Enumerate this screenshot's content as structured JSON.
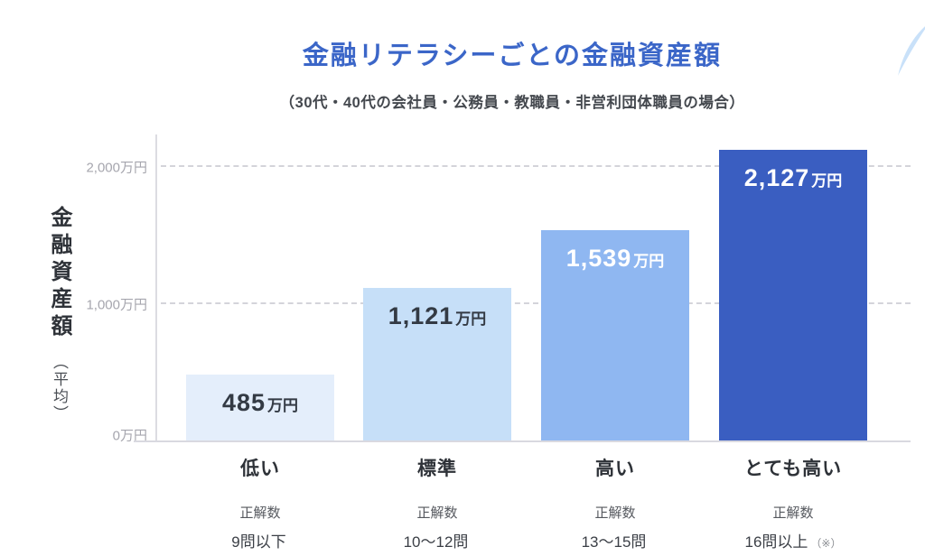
{
  "title": "金融リテラシーごとの金融資産額",
  "subtitle": "（30代・40代の会社員・公務員・教職員・非営利団体職員の場合）",
  "decor": {
    "swoosh_color": "#c9e1f9"
  },
  "y_axis": {
    "label_main": "金融資産額",
    "label_sub": "（平均）",
    "tick_2000": "2,000万円",
    "tick_1000": "1,000万円",
    "tick_0": "0万円"
  },
  "chart_data": {
    "type": "bar",
    "title": "金融リテラシーごとの金融資産額",
    "subtitle": "（30代・40代の会社員・公務員・教職員・非営利団体職員の場合）",
    "ylabel": "金融資産額（平均）",
    "unit": "万円",
    "ylim": [
      0,
      2200
    ],
    "yticks": [
      0,
      1000,
      2000
    ],
    "grid": "dashed horizontal at 1000 and 2000",
    "legend": "none",
    "categories": [
      "低い",
      "標準",
      "高い",
      "とても高い"
    ],
    "values": [
      485,
      1121,
      1539,
      2127
    ],
    "bars": [
      {
        "category": "低い",
        "answers_caption": "正解数",
        "range": "9問以下",
        "note": "",
        "value": 485,
        "value_label": "485",
        "unit": "万円",
        "color": "#e4eefb",
        "label_color": "#333a44"
      },
      {
        "category": "標準",
        "answers_caption": "正解数",
        "range": "10〜12問",
        "note": "",
        "value": 1121,
        "value_label": "1,121",
        "unit": "万円",
        "color": "#c6dff8",
        "label_color": "#333a44"
      },
      {
        "category": "高い",
        "answers_caption": "正解数",
        "range": "13〜15問",
        "note": "",
        "value": 1539,
        "value_label": "1,539",
        "unit": "万円",
        "color": "#8fb7f1",
        "label_color": "#ffffff"
      },
      {
        "category": "とても高い",
        "answers_caption": "正解数",
        "range": "16問以上",
        "note": "（※）",
        "value": 2127,
        "value_label": "2,127",
        "unit": "万円",
        "color": "#3a5ec1",
        "label_color": "#ffffff"
      }
    ]
  }
}
